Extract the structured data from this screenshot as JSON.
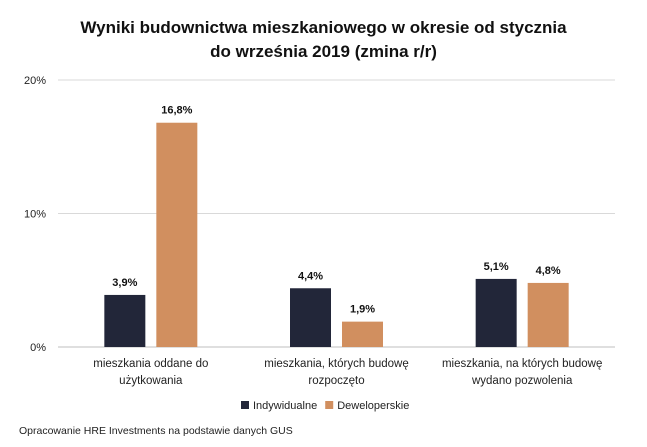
{
  "chart_data": {
    "type": "bar",
    "title_line1": "Wyniki budownictwa mieszkaniowego w okresie od stycznia",
    "title_line2": "do września 2019 (zmina r/r)",
    "categories": [
      [
        "mieszkania oddane do",
        "użytkowania"
      ],
      [
        "mieszkania, których budowę",
        "rozpoczęto"
      ],
      [
        "mieszkania, na których budowę",
        "wydano pozwolenia"
      ]
    ],
    "series": [
      {
        "name": "Indywidualne",
        "color": "#222639",
        "values": [
          3.9,
          4.4,
          5.1
        ],
        "labels": [
          "3,9%",
          "4,4%",
          "5,1%"
        ]
      },
      {
        "name": "Deweloperskie",
        "color": "#d18f5f",
        "values": [
          16.8,
          1.9,
          4.8
        ],
        "labels": [
          "16,8%",
          "1,9%",
          "4,8%"
        ]
      }
    ],
    "ylim": [
      0,
      20
    ],
    "yticks": [
      0,
      10,
      20
    ],
    "ytick_labels": [
      "0%",
      "10%",
      "20%"
    ],
    "grid": true,
    "legend_position": "bottom",
    "xlabel": "",
    "ylabel": ""
  },
  "source_note": "Opracowanie HRE Investments na podstawie danych GUS"
}
